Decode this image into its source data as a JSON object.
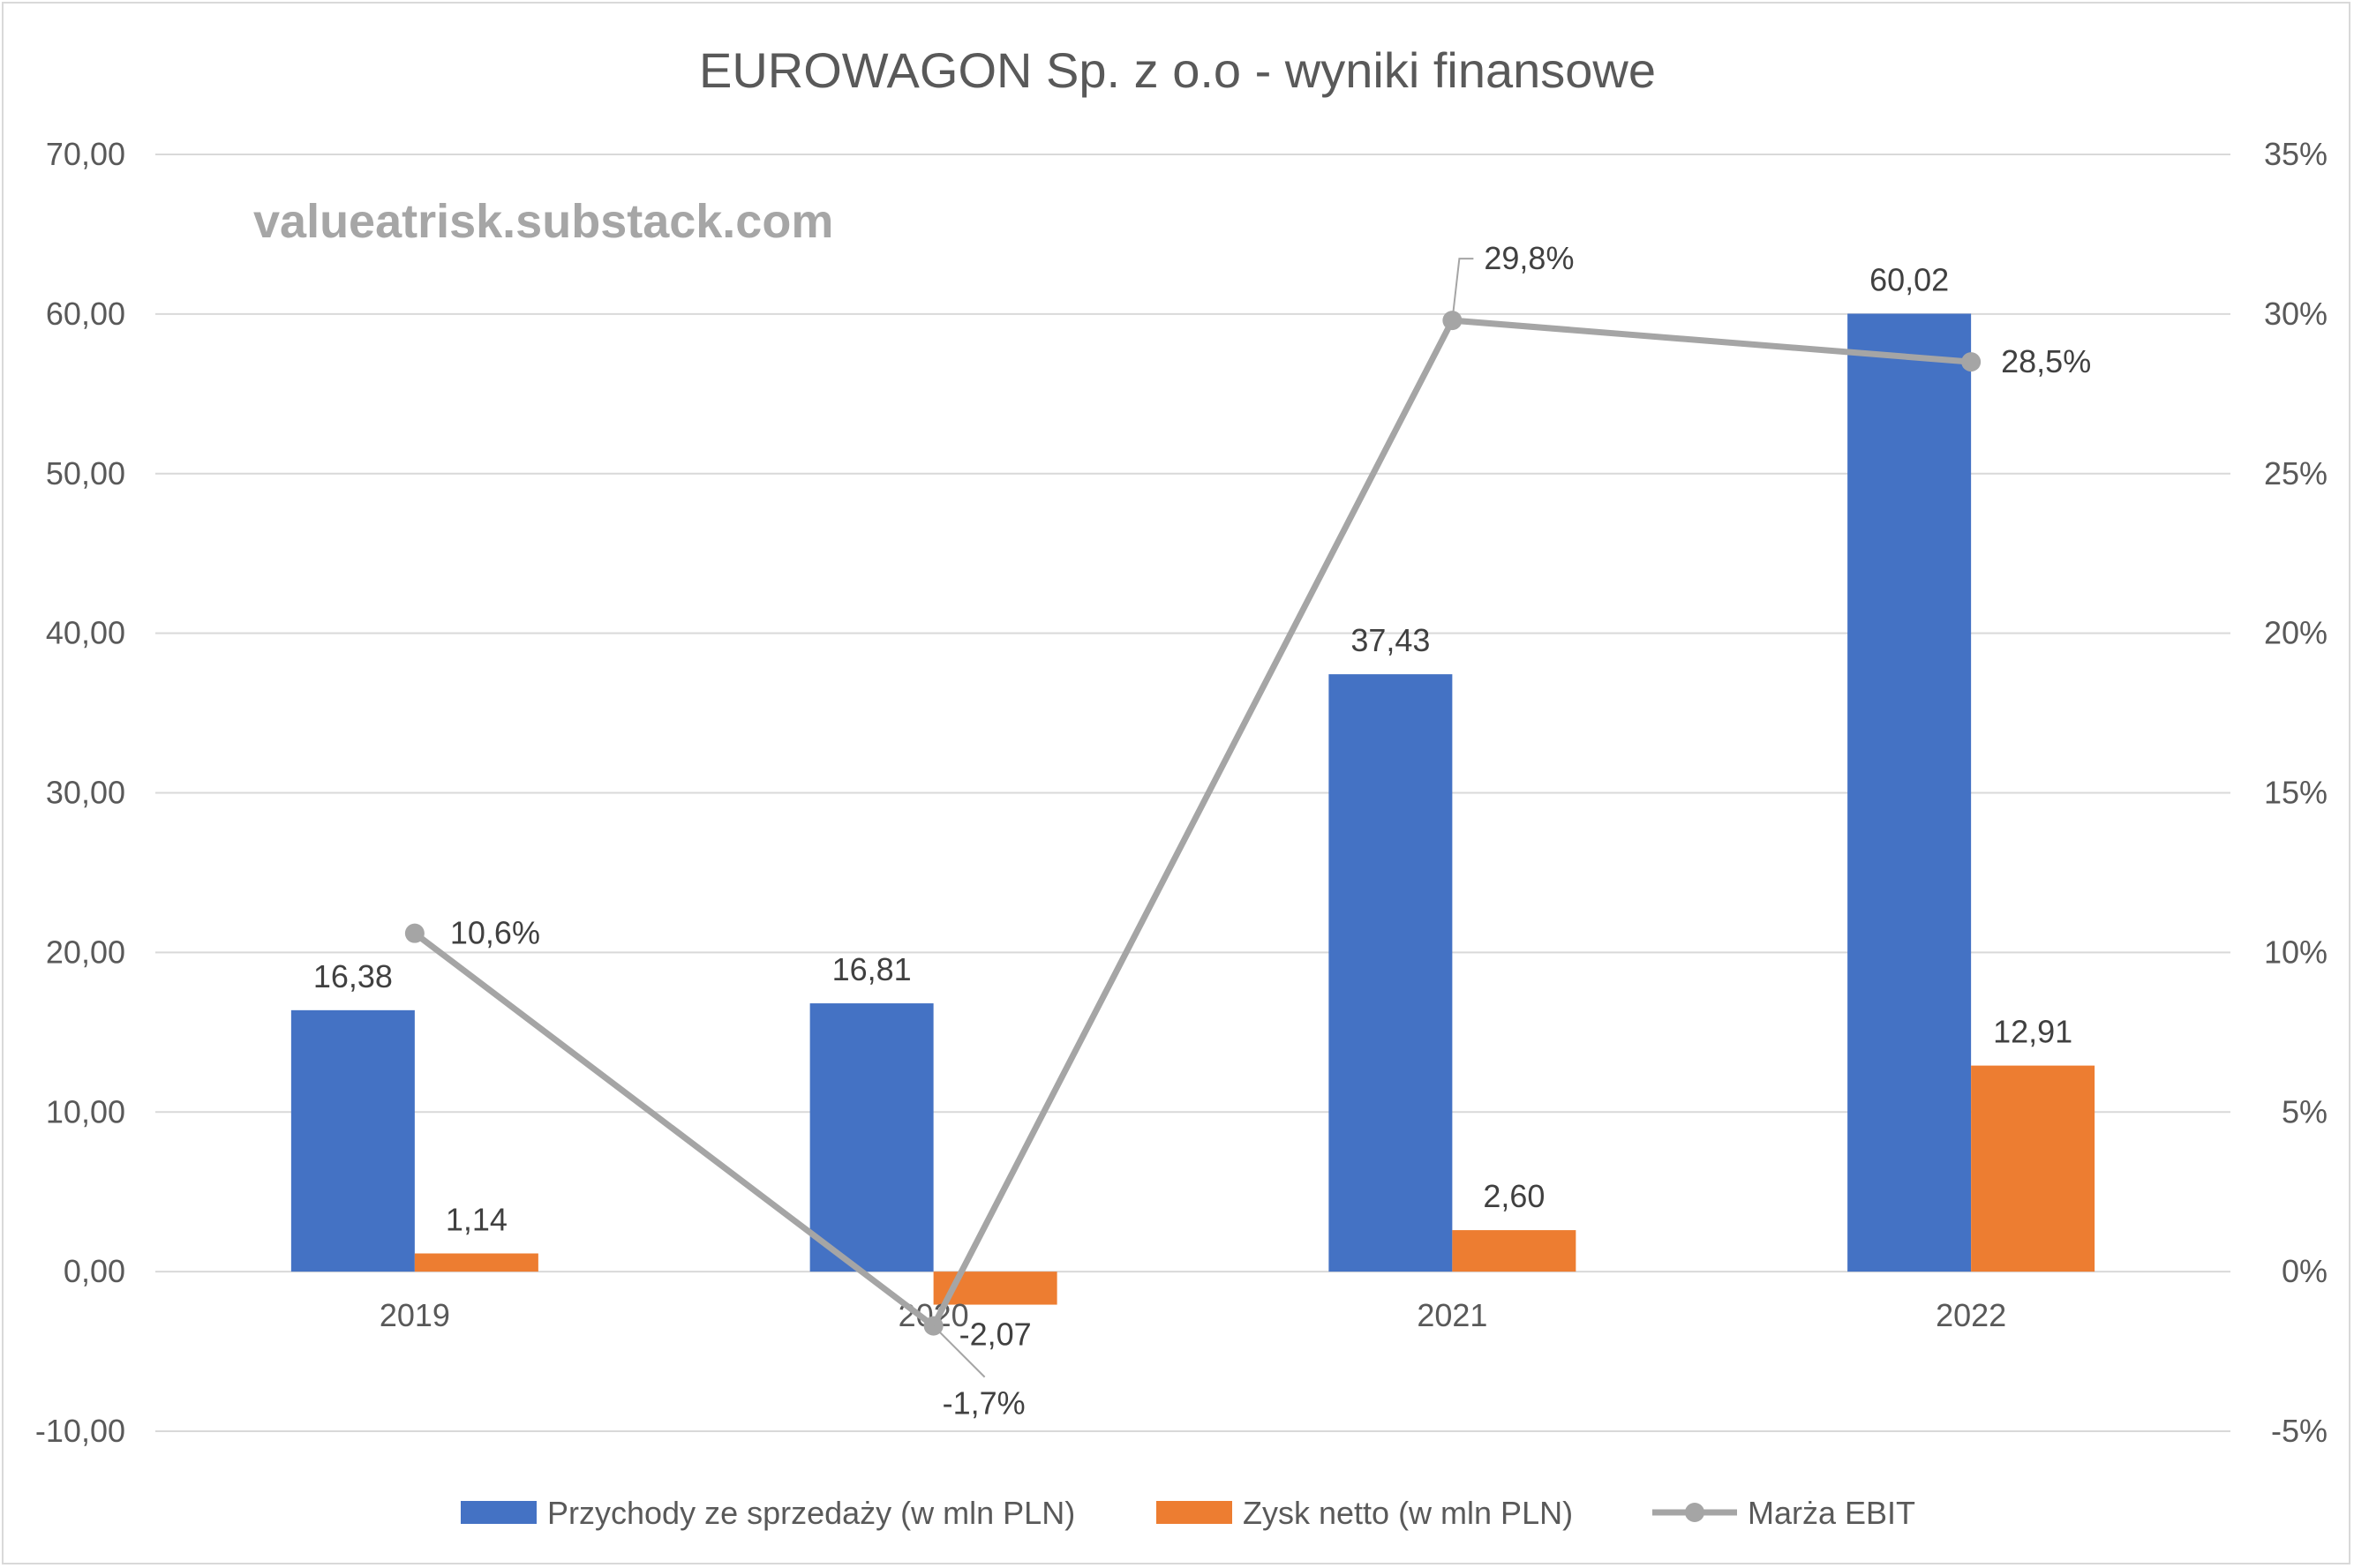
{
  "chart_data": {
    "type": "bar",
    "title": "EUROWAGON Sp. z o.o - wyniki finansowe",
    "watermark": "valueatrisk.substack.com",
    "categories": [
      "2019",
      "2020",
      "2021",
      "2022"
    ],
    "y_left": {
      "ylim": [
        -10,
        70
      ],
      "ticks": [
        "-10,00",
        "0,00",
        "10,00",
        "20,00",
        "30,00",
        "40,00",
        "50,00",
        "60,00",
        "70,00"
      ]
    },
    "y_right": {
      "ylim": [
        -5,
        35
      ],
      "ticks": [
        "-5%",
        "0%",
        "5%",
        "10%",
        "15%",
        "20%",
        "25%",
        "30%",
        "35%"
      ]
    },
    "grid": true,
    "legend_position": "bottom",
    "series": [
      {
        "name": "Przychody ze sprzedaży (w mln PLN)",
        "type": "bar",
        "axis": "left",
        "color": "#4472c4",
        "values": [
          16.38,
          16.81,
          37.43,
          60.02
        ],
        "labels": [
          "16,38",
          "16,81",
          "37,43",
          "60,02"
        ]
      },
      {
        "name": "Zysk netto (w mln PLN)",
        "type": "bar",
        "axis": "left",
        "color": "#ed7d31",
        "values": [
          1.14,
          -2.07,
          2.6,
          12.91
        ],
        "labels": [
          "1,14",
          "-2,07",
          "2,60",
          "12,91"
        ]
      },
      {
        "name": "Marża EBIT",
        "type": "line",
        "axis": "right",
        "color": "#a5a5a5",
        "values": [
          10.6,
          -1.7,
          29.8,
          28.5
        ],
        "labels": [
          "10,6%",
          "-1,7%",
          "29,8%",
          "28,5%"
        ]
      }
    ]
  }
}
